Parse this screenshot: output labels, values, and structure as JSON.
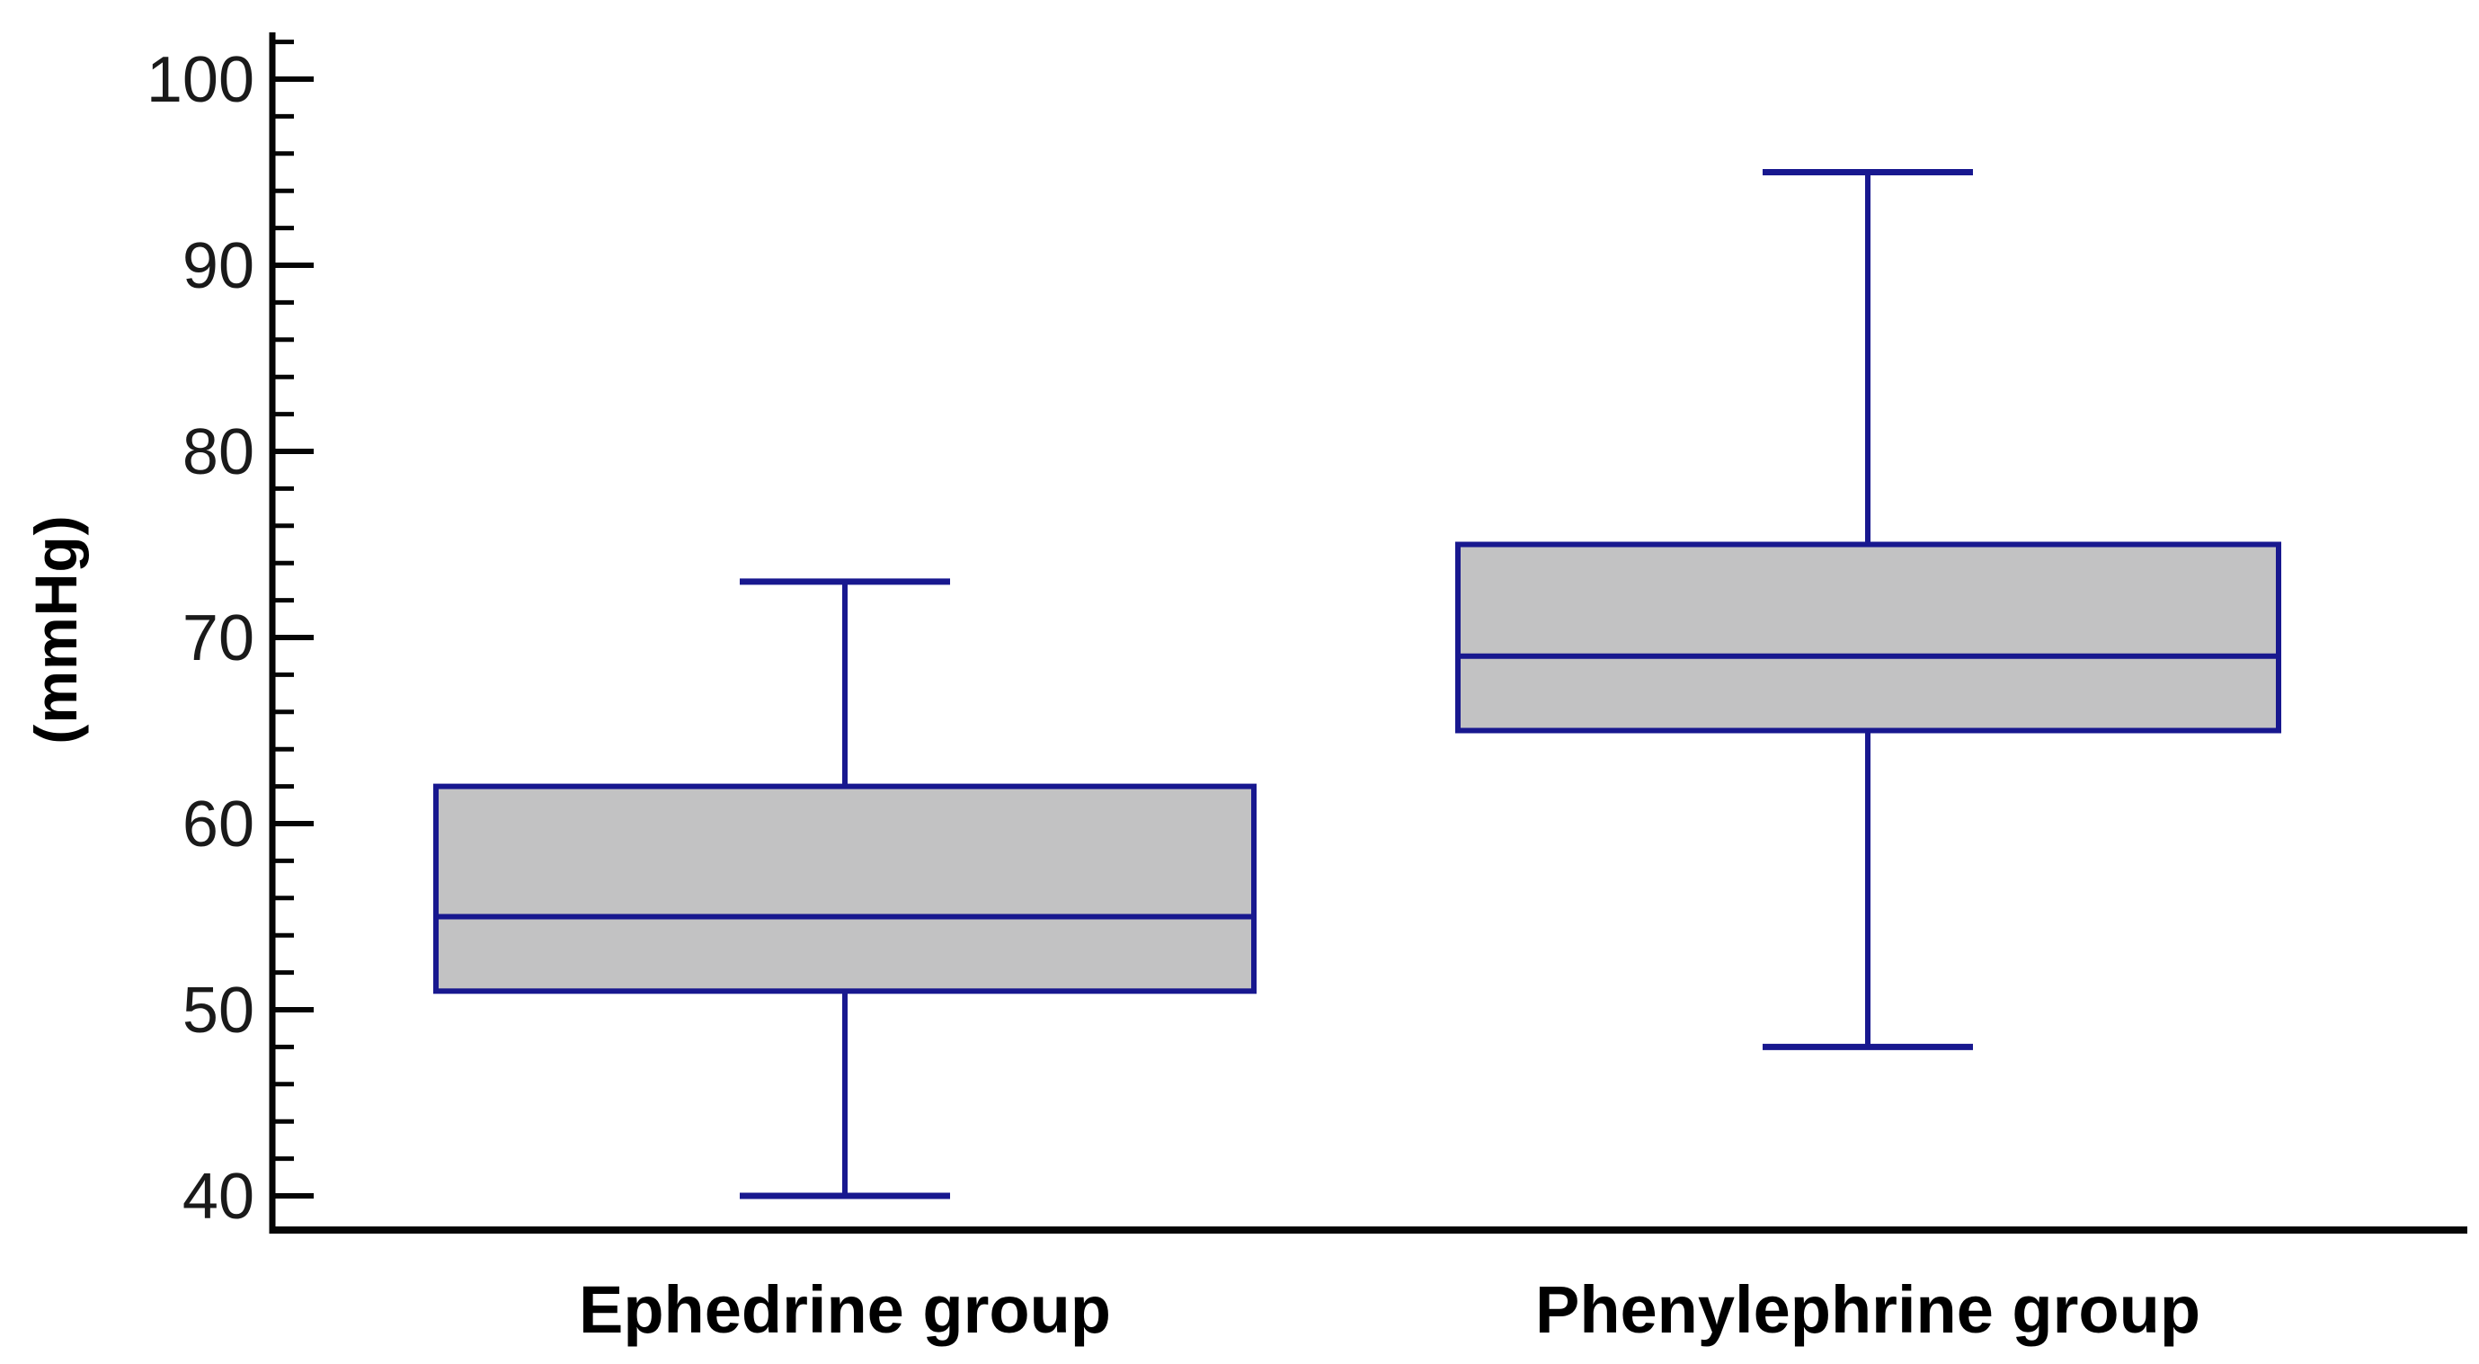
{
  "chart_data": {
    "type": "box",
    "title": "",
    "ylabel": "(mmHg)",
    "xlabel": "",
    "categories": [
      "Ephedrine group",
      "Phenylephrine group"
    ],
    "series": [
      {
        "name": "Ephedrine group",
        "min": 40,
        "q1": 51,
        "median": 55,
        "q3": 62,
        "max": 73
      },
      {
        "name": "Phenylephrine group",
        "min": 48,
        "q1": 65,
        "median": 69,
        "q3": 75,
        "max": 95
      }
    ],
    "ylim": [
      40,
      100
    ],
    "y_major_ticks": [
      40,
      50,
      60,
      70,
      80,
      90,
      100
    ],
    "y_minor_tick_step": 2,
    "grid": false,
    "legend": false
  },
  "colors": {
    "background": "#ffffff",
    "axis": "#050505",
    "tick_label": "#1a1a1a",
    "box_border": "#18188f",
    "box_fill": "#c2c2c3",
    "median": "#18188f",
    "whisker": "#18188f"
  }
}
